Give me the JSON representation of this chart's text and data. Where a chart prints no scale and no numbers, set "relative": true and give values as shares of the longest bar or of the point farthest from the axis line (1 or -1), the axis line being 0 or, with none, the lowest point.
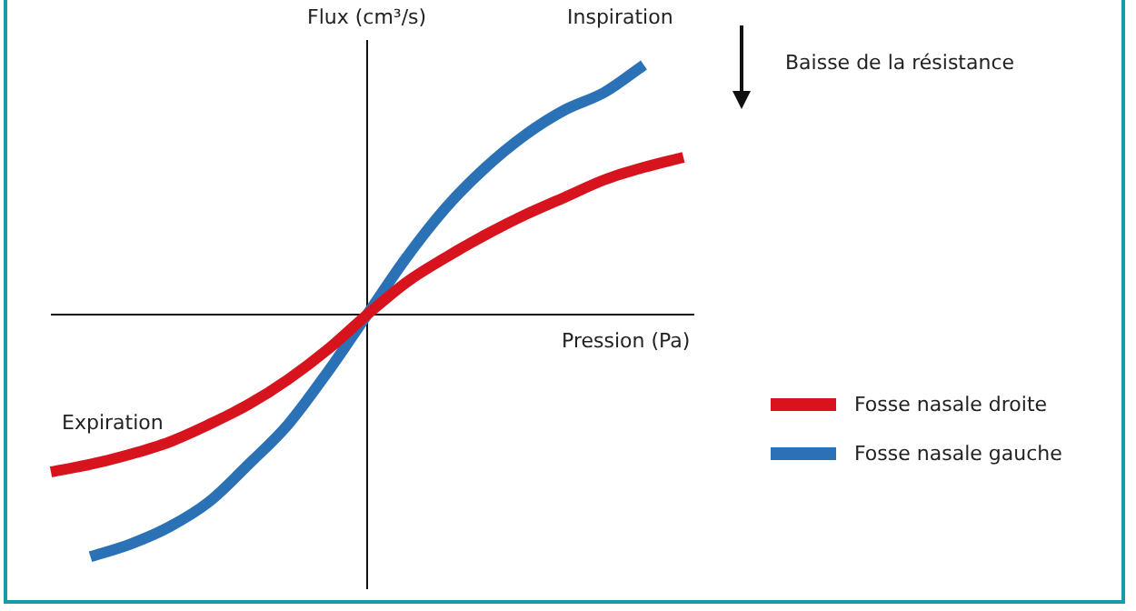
{
  "chart_data": {
    "type": "line",
    "relative": true,
    "xlabel": "Pression (Pa)",
    "ylabel": "Flux (cm³/s)",
    "categories": [
      null,
      null,
      null,
      null,
      null,
      null,
      null,
      null,
      null,
      null,
      null,
      null,
      null,
      null,
      null,
      null,
      null
    ],
    "series": [
      {
        "name": "Fosse nasale droite",
        "color": "#d7141e",
        "values": [
          -0.63,
          -0.6,
          -0.56,
          -0.51,
          -0.44,
          -0.36,
          -0.26,
          -0.14,
          0,
          0.13,
          0.23,
          0.32,
          0.4,
          0.47,
          0.54,
          0.59,
          0.63
        ]
      },
      {
        "name": "Fosse nasale gauche",
        "color": "#2a72b5",
        "values": [
          null,
          -0.97,
          -0.92,
          -0.85,
          -0.75,
          -0.6,
          -0.44,
          -0.23,
          0,
          0.23,
          0.43,
          0.59,
          0.72,
          0.82,
          0.89,
          1.0,
          null
        ]
      }
    ],
    "annotations": [
      "Inspiration",
      "Expiration",
      "Baisse de la résistance"
    ],
    "legend": "right",
    "marker": "none",
    "line_style": "solid"
  }
}
